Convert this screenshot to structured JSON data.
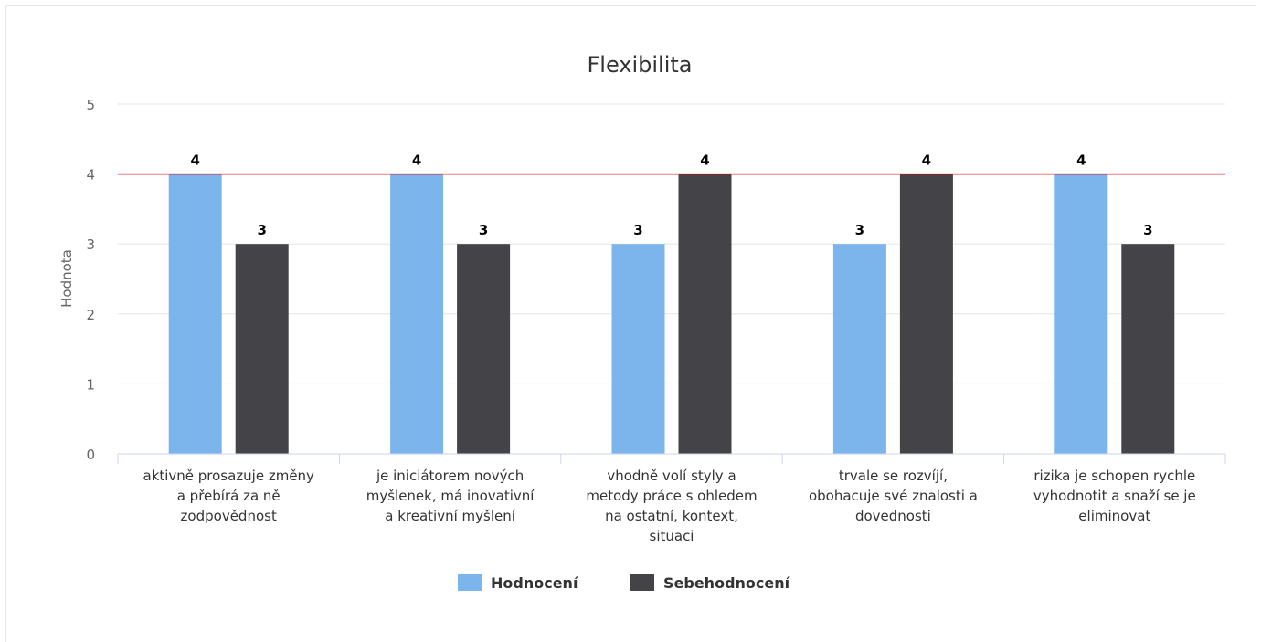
{
  "chart_data": {
    "type": "bar",
    "title": "Flexibilita",
    "ylabel": "Hodnota",
    "xlabel": "",
    "ylim": [
      0,
      5
    ],
    "yticks": [
      0,
      1,
      2,
      3,
      4,
      5
    ],
    "categories": [
      [
        "aktivně prosazuje změny",
        "a přebírá za ně",
        "zodpovědnost"
      ],
      [
        "je iniciátorem nových",
        "myšlenek, má inovativní",
        "a kreativní myšlení"
      ],
      [
        "vhodně volí styly a",
        "metody práce s ohledem",
        "na ostatní, kontext,",
        "situaci"
      ],
      [
        "trvale se rozvíjí,",
        "obohacuje své znalosti a",
        "dovednosti"
      ],
      [
        "rizika je schopen rychle",
        "vyhodnotit a snaží se je",
        "eliminovat"
      ]
    ],
    "series": [
      {
        "name": "Hodnocení",
        "values": [
          4,
          4,
          3,
          3,
          4
        ],
        "color": "#7cb5ec"
      },
      {
        "name": "Sebehodnocení",
        "values": [
          3,
          3,
          4,
          4,
          3
        ],
        "color": "#434348"
      }
    ],
    "reference_line": {
      "value": 4,
      "color": "#e00000"
    },
    "grid": true,
    "legend_position": "bottom-center"
  }
}
